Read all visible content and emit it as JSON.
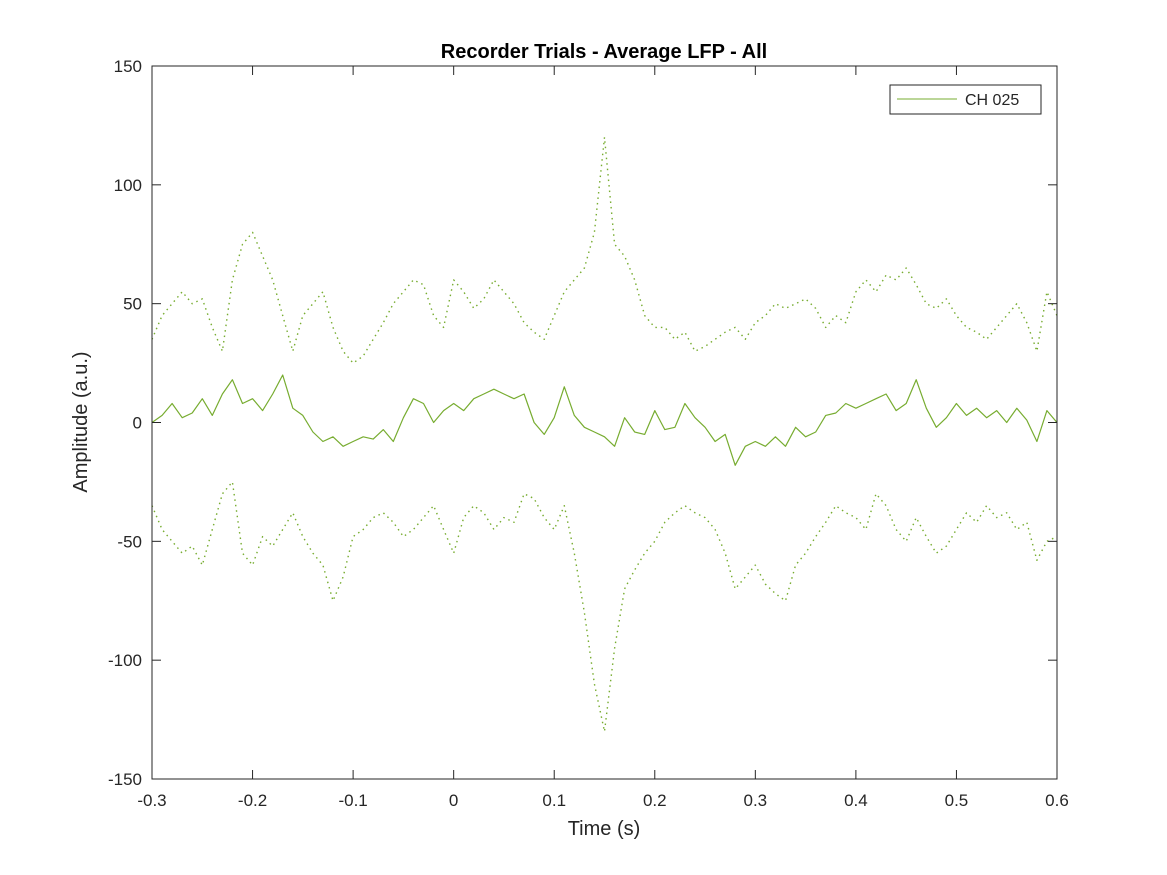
{
  "chart_data": {
    "type": "line",
    "title": "Recorder Trials - Average LFP - All",
    "xlabel": "Time (s)",
    "ylabel": "Amplitude (a.u.)",
    "xlim": [
      -0.3,
      0.6
    ],
    "ylim": [
      -150,
      150
    ],
    "x_ticks": [
      -0.3,
      -0.2,
      -0.1,
      0,
      0.1,
      0.2,
      0.3,
      0.4,
      0.5,
      0.6
    ],
    "x_tick_labels": [
      "-0.3",
      "-0.2",
      "-0.1",
      "0",
      "0.1",
      "0.2",
      "0.3",
      "0.4",
      "0.5",
      "0.6"
    ],
    "y_ticks": [
      -150,
      -100,
      -50,
      0,
      50,
      100,
      150
    ],
    "y_tick_labels": [
      "-150",
      "-100",
      "-50",
      "0",
      "50",
      "100",
      "150"
    ],
    "grid": false,
    "legend": {
      "placement": "top-right",
      "entries": [
        "CH 025"
      ]
    },
    "color": "#77ac30",
    "x": [
      -0.3,
      -0.29,
      -0.28,
      -0.27,
      -0.26,
      -0.25,
      -0.24,
      -0.23,
      -0.22,
      -0.21,
      -0.2,
      -0.19,
      -0.18,
      -0.17,
      -0.16,
      -0.15,
      -0.14,
      -0.13,
      -0.12,
      -0.11,
      -0.1,
      -0.09,
      -0.08,
      -0.07,
      -0.06,
      -0.05,
      -0.04,
      -0.03,
      -0.02,
      -0.01,
      0,
      0.01,
      0.02,
      0.03,
      0.04,
      0.05,
      0.06,
      0.07,
      0.08,
      0.09,
      0.1,
      0.11,
      0.12,
      0.13,
      0.14,
      0.15,
      0.16,
      0.17,
      0.18,
      0.19,
      0.2,
      0.21,
      0.22,
      0.23,
      0.24,
      0.25,
      0.26,
      0.27,
      0.28,
      0.29,
      0.3,
      0.31,
      0.32,
      0.33,
      0.34,
      0.35,
      0.36,
      0.37,
      0.38,
      0.39,
      0.4,
      0.41,
      0.42,
      0.43,
      0.44,
      0.45,
      0.46,
      0.47,
      0.48,
      0.49,
      0.5,
      0.51,
      0.52,
      0.53,
      0.54,
      0.55,
      0.56,
      0.57,
      0.58,
      0.59,
      0.6
    ],
    "series": [
      {
        "name": "CH 025",
        "style": "solid",
        "values": [
          0,
          3,
          8,
          2,
          4,
          10,
          3,
          12,
          18,
          8,
          10,
          5,
          12,
          20,
          6,
          3,
          -4,
          -8,
          -6,
          -10,
          -8,
          -6,
          -7,
          -3,
          -8,
          2,
          10,
          8,
          0,
          5,
          8,
          5,
          10,
          12,
          14,
          12,
          10,
          12,
          0,
          -5,
          2,
          15,
          3,
          -2,
          -4,
          -6,
          -10,
          2,
          -4,
          -5,
          5,
          -3,
          -2,
          8,
          2,
          -2,
          -8,
          -5,
          -18,
          -10,
          -8,
          -10,
          -6,
          -10,
          -2,
          -6,
          -4,
          3,
          4,
          8,
          6,
          8,
          10,
          12,
          5,
          8,
          18,
          6,
          -2,
          2,
          8,
          3,
          6,
          2,
          5,
          0,
          6,
          1,
          -8,
          5,
          0
        ]
      },
      {
        "style": "dotted",
        "values": [
          35,
          45,
          50,
          55,
          50,
          52,
          40,
          30,
          60,
          75,
          80,
          70,
          60,
          45,
          30,
          45,
          50,
          55,
          40,
          30,
          25,
          28,
          35,
          42,
          50,
          55,
          60,
          58,
          45,
          40,
          60,
          55,
          48,
          52,
          60,
          55,
          50,
          42,
          38,
          35,
          45,
          55,
          60,
          65,
          80,
          120,
          75,
          70,
          60,
          45,
          40,
          40,
          35,
          38,
          30,
          32,
          35,
          38,
          40,
          35,
          42,
          45,
          50,
          48,
          50,
          52,
          48,
          40,
          45,
          42,
          55,
          60,
          55,
          62,
          60,
          65,
          58,
          50,
          48,
          52,
          45,
          40,
          38,
          35,
          40,
          45,
          50,
          42,
          30,
          55,
          45
        ]
      },
      {
        "style": "dotted",
        "values": [
          -35,
          -45,
          -50,
          -55,
          -52,
          -60,
          -45,
          -30,
          -25,
          -55,
          -60,
          -48,
          -52,
          -45,
          -38,
          -48,
          -55,
          -60,
          -75,
          -65,
          -48,
          -45,
          -40,
          -38,
          -42,
          -48,
          -45,
          -40,
          -35,
          -45,
          -55,
          -40,
          -35,
          -38,
          -45,
          -40,
          -42,
          -30,
          -32,
          -40,
          -45,
          -35,
          -55,
          -80,
          -110,
          -130,
          -95,
          -70,
          -62,
          -55,
          -50,
          -42,
          -38,
          -35,
          -38,
          -40,
          -45,
          -55,
          -70,
          -65,
          -60,
          -68,
          -72,
          -75,
          -60,
          -55,
          -48,
          -42,
          -35,
          -38,
          -40,
          -45,
          -30,
          -35,
          -45,
          -50,
          -40,
          -48,
          -55,
          -52,
          -45,
          -38,
          -42,
          -35,
          -40,
          -38,
          -45,
          -42,
          -58,
          -50,
          -48
        ]
      }
    ]
  }
}
